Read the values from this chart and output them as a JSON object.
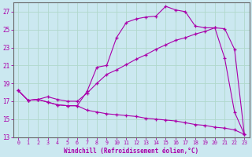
{
  "xlabel": "Windchill (Refroidissement éolien,°C)",
  "bg_color": "#cbe8f0",
  "grid_color": "#b0d8cc",
  "line_color": "#aa00aa",
  "xlim": [
    -0.5,
    23.5
  ],
  "ylim": [
    13,
    28
  ],
  "xticks": [
    0,
    1,
    2,
    3,
    4,
    5,
    6,
    7,
    8,
    9,
    10,
    11,
    12,
    13,
    14,
    15,
    16,
    17,
    18,
    19,
    20,
    21,
    22,
    23
  ],
  "yticks": [
    13,
    15,
    17,
    19,
    21,
    23,
    25,
    27
  ],
  "line1_x": [
    0,
    1,
    2,
    3,
    4,
    5,
    6,
    7,
    8,
    9,
    10,
    11,
    12,
    13,
    14,
    15,
    16,
    17,
    18,
    19,
    20,
    21,
    22,
    23
  ],
  "line1_y": [
    18.2,
    17.1,
    17.2,
    16.9,
    16.6,
    16.5,
    16.5,
    18.1,
    20.8,
    21.0,
    24.1,
    25.8,
    26.2,
    26.4,
    26.5,
    27.6,
    27.2,
    27.0,
    25.4,
    25.2,
    25.2,
    21.8,
    15.8,
    13.3
  ],
  "line2_x": [
    0,
    1,
    2,
    3,
    4,
    5,
    6,
    7,
    8,
    9,
    10,
    11,
    12,
    13,
    14,
    15,
    16,
    17,
    18,
    19,
    20,
    21,
    22,
    23
  ],
  "line2_y": [
    18.2,
    17.1,
    17.2,
    17.5,
    17.2,
    17.0,
    17.0,
    17.9,
    19.0,
    20.0,
    20.5,
    21.1,
    21.7,
    22.2,
    22.8,
    23.3,
    23.8,
    24.1,
    24.5,
    24.8,
    25.2,
    25.1,
    22.8,
    13.3
  ],
  "line3_x": [
    0,
    1,
    2,
    3,
    4,
    5,
    6,
    7,
    8,
    9,
    10,
    11,
    12,
    13,
    14,
    15,
    16,
    17,
    18,
    19,
    20,
    21,
    22,
    23
  ],
  "line3_y": [
    18.2,
    17.1,
    17.2,
    16.9,
    16.6,
    16.5,
    16.5,
    16.0,
    15.8,
    15.6,
    15.5,
    15.4,
    15.3,
    15.1,
    15.0,
    14.9,
    14.8,
    14.6,
    14.4,
    14.3,
    14.1,
    14.0,
    13.8,
    13.3
  ]
}
